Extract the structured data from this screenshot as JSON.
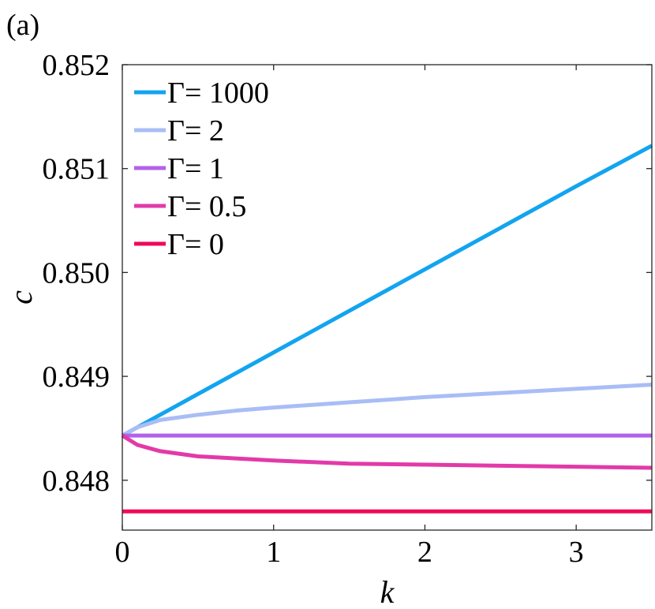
{
  "panel_label": "(a)",
  "chart_data": {
    "type": "line",
    "title": "",
    "xlabel": "k",
    "ylabel": "c",
    "xlim": [
      0,
      3.5
    ],
    "ylim": [
      0.84752,
      0.852
    ],
    "xticks": [
      0,
      1,
      2,
      3
    ],
    "xtick_labels": [
      "0",
      "1",
      "2",
      "3"
    ],
    "yticks": [
      0.848,
      0.849,
      0.85,
      0.851,
      0.852
    ],
    "ytick_labels": [
      "0.848",
      "0.849",
      "0.850",
      "0.851",
      "0.852"
    ],
    "grid": false,
    "legend_position": "top-left",
    "series": [
      {
        "name": "Γ= 1000",
        "color": "#12a4f0",
        "x": [
          0,
          0.5,
          1,
          1.5,
          2,
          2.5,
          3,
          3.5
        ],
        "y": [
          0.84843,
          0.84883,
          0.84923,
          0.84963,
          0.85003,
          0.85043,
          0.85083,
          0.85122
        ]
      },
      {
        "name": "Γ= 2",
        "color": "#a9bdf5",
        "x": [
          0,
          0.1,
          0.25,
          0.5,
          0.75,
          1,
          1.5,
          2,
          2.5,
          3,
          3.5
        ],
        "y": [
          0.84843,
          0.84851,
          0.84858,
          0.84863,
          0.84867,
          0.8487,
          0.84875,
          0.8488,
          0.84884,
          0.84888,
          0.84892
        ]
      },
      {
        "name": "Γ= 1",
        "color": "#b062ea",
        "x": [
          0,
          3.5
        ],
        "y": [
          0.84843,
          0.84843
        ]
      },
      {
        "name": "Γ= 0.5",
        "color": "#e23aa8",
        "x": [
          0,
          0.1,
          0.25,
          0.5,
          0.75,
          1,
          1.5,
          2,
          2.5,
          3,
          3.5
        ],
        "y": [
          0.84843,
          0.84834,
          0.84828,
          0.84823,
          0.84821,
          0.84819,
          0.84816,
          0.84815,
          0.84814,
          0.84813,
          0.84812
        ]
      },
      {
        "name": "Γ= 0",
        "color": "#f0095a",
        "x": [
          0,
          3.5
        ],
        "y": [
          0.8477,
          0.8477
        ]
      }
    ]
  }
}
